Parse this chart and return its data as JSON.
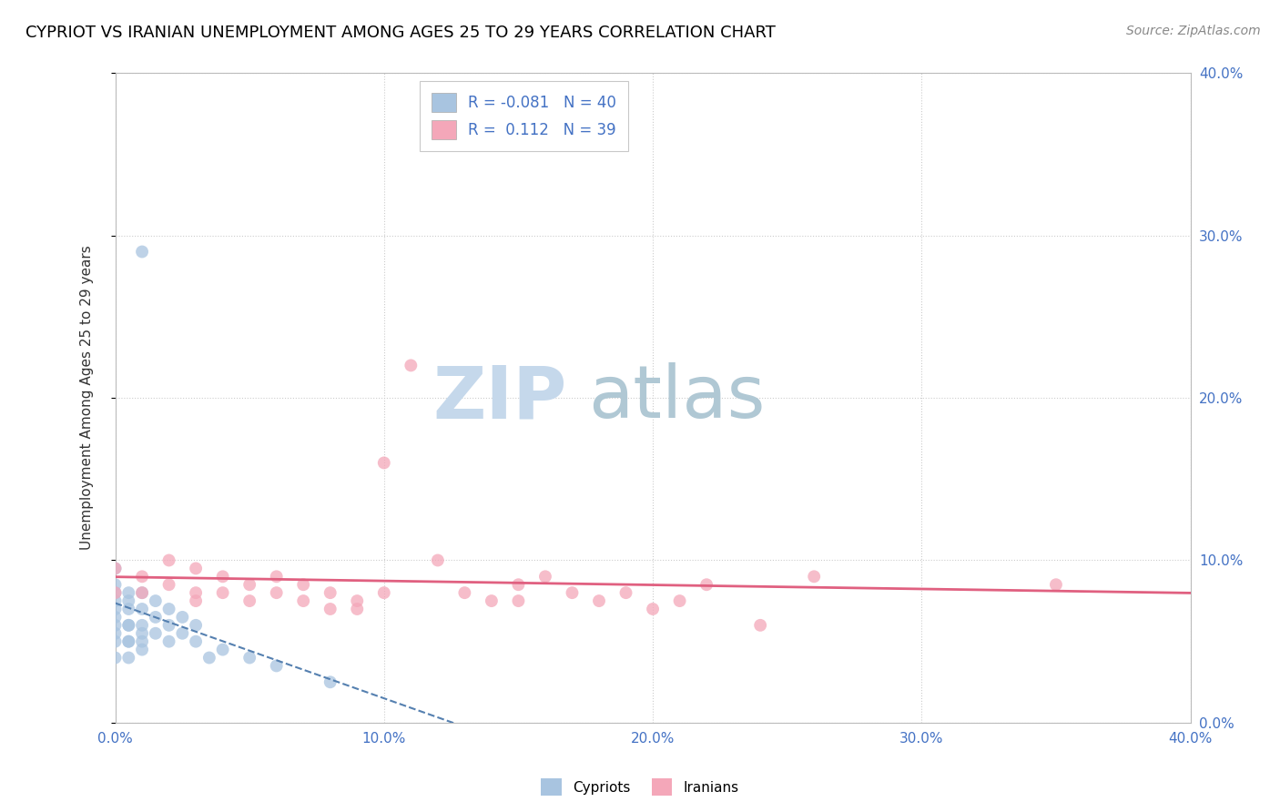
{
  "title": "CYPRIOT VS IRANIAN UNEMPLOYMENT AMONG AGES 25 TO 29 YEARS CORRELATION CHART",
  "source": "Source: ZipAtlas.com",
  "ylabel": "Unemployment Among Ages 25 to 29 years",
  "xlim": [
    0.0,
    0.4
  ],
  "ylim": [
    0.0,
    0.4
  ],
  "xticks": [
    0.0,
    0.1,
    0.2,
    0.3,
    0.4
  ],
  "yticks": [
    0.0,
    0.1,
    0.2,
    0.3,
    0.4
  ],
  "xtick_labels": [
    "0.0%",
    "10.0%",
    "20.0%",
    "30.0%",
    "40.0%"
  ],
  "ytick_labels_right": [
    "0.0%",
    "10.0%",
    "20.0%",
    "30.0%",
    "40.0%"
  ],
  "color_cypriot": "#a8c4e0",
  "color_iranian": "#f4a7b9",
  "color_cypriot_line": "#5580b0",
  "color_iranian_line": "#e06080",
  "watermark_zip_color": "#c8d8e8",
  "watermark_atlas_color": "#b0c8d8",
  "background_color": "#ffffff",
  "grid_color": "#cccccc",
  "title_color": "#000000",
  "source_color": "#888888",
  "label_color_blue": "#4472c4",
  "marker_size": 100,
  "cypriot_x": [
    0.0,
    0.0,
    0.0,
    0.0,
    0.0,
    0.0,
    0.0,
    0.0,
    0.0,
    0.0,
    0.005,
    0.005,
    0.005,
    0.005,
    0.005,
    0.005,
    0.005,
    0.005,
    0.01,
    0.01,
    0.01,
    0.01,
    0.01,
    0.01,
    0.015,
    0.015,
    0.015,
    0.02,
    0.02,
    0.02,
    0.025,
    0.025,
    0.03,
    0.03,
    0.035,
    0.04,
    0.05,
    0.06,
    0.08,
    0.01
  ],
  "cypriot_y": [
    0.05,
    0.055,
    0.06,
    0.065,
    0.07,
    0.075,
    0.08,
    0.085,
    0.095,
    0.04,
    0.05,
    0.06,
    0.07,
    0.08,
    0.05,
    0.06,
    0.04,
    0.075,
    0.05,
    0.06,
    0.07,
    0.08,
    0.045,
    0.055,
    0.055,
    0.065,
    0.075,
    0.05,
    0.06,
    0.07,
    0.055,
    0.065,
    0.05,
    0.06,
    0.04,
    0.045,
    0.04,
    0.035,
    0.025,
    0.29
  ],
  "iranian_x": [
    0.0,
    0.0,
    0.01,
    0.01,
    0.02,
    0.02,
    0.03,
    0.03,
    0.03,
    0.04,
    0.04,
    0.05,
    0.05,
    0.06,
    0.06,
    0.07,
    0.07,
    0.08,
    0.08,
    0.09,
    0.09,
    0.1,
    0.1,
    0.11,
    0.12,
    0.13,
    0.14,
    0.15,
    0.15,
    0.16,
    0.17,
    0.18,
    0.19,
    0.2,
    0.21,
    0.22,
    0.24,
    0.26,
    0.35
  ],
  "iranian_y": [
    0.095,
    0.08,
    0.09,
    0.08,
    0.1,
    0.085,
    0.095,
    0.08,
    0.075,
    0.09,
    0.08,
    0.085,
    0.075,
    0.09,
    0.08,
    0.085,
    0.075,
    0.08,
    0.07,
    0.075,
    0.07,
    0.16,
    0.08,
    0.22,
    0.1,
    0.08,
    0.075,
    0.085,
    0.075,
    0.09,
    0.08,
    0.075,
    0.08,
    0.07,
    0.075,
    0.085,
    0.06,
    0.09,
    0.085
  ]
}
